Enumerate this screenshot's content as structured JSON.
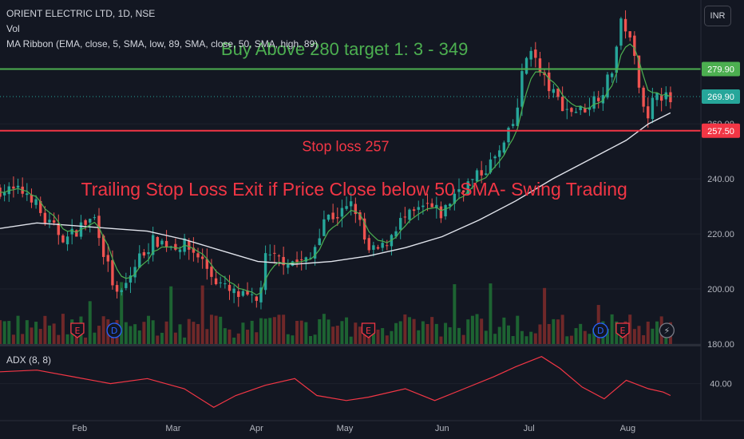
{
  "header": {
    "symbol_line": "ORIENT ELECTRIC LTD, 1D, NSE",
    "volume_label": "Vol",
    "ma_ribbon_label": "MA Ribbon (EMA, close, 5, SMA, low, 89, SMA, close, 50, SMA, high, 89)",
    "currency_button": "INR"
  },
  "adx_label": "ADX (8, 8)",
  "colors": {
    "background": "#131722",
    "up": "#26a69a",
    "down": "#ef5350",
    "buy_line": "#4caf50",
    "stop_line": "#f23645",
    "sma_line": "#e0e3eb",
    "ema_line": "#4caf50",
    "adx_line": "#f23645",
    "volume_up": "#1f6b34",
    "volume_down": "#7a2a2a"
  },
  "chart_data": [
    {
      "type": "candlestick",
      "title": "ORIENT ELECTRIC LTD, 1D, NSE",
      "x_tick_labels": [
        "Feb",
        "Mar",
        "Apr",
        "May",
        "Jun",
        "Jul",
        "Aug"
      ],
      "y_tick_labels": [
        "180.00",
        "200.00",
        "220.00",
        "240.00",
        "260.00"
      ],
      "ylim": [
        180,
        305
      ],
      "price_labels": [
        {
          "value": 279.9,
          "text": "279.90",
          "color": "#4caf50"
        },
        {
          "value": 269.9,
          "text": "269.90",
          "color": "#26a69a"
        },
        {
          "value": 257.5,
          "text": "257.50",
          "color": "#f23645"
        }
      ],
      "horizontal_lines": [
        {
          "value": 279.9,
          "color": "#4caf50"
        },
        {
          "value": 257.5,
          "color": "#f23645"
        }
      ],
      "annotations": [
        {
          "text": "Buy Above 280 target 1: 3 - 349",
          "color": "#4caf50",
          "at": [
            0.3,
            285
          ]
        },
        {
          "text": "Stop loss 257",
          "color": "#f23645",
          "at": [
            0.41,
            250
          ]
        },
        {
          "text": "Trailing Stop Loss Exit if Price Close below 50 SMA- Swing Trading",
          "color": "#f23645",
          "at": [
            0.11,
            234
          ]
        }
      ],
      "event_markers": [
        {
          "label": "E",
          "kind": "earnings",
          "t": 0.105
        },
        {
          "label": "D",
          "kind": "dividend",
          "t": 0.155
        },
        {
          "label": "E",
          "kind": "earnings",
          "t": 0.5
        },
        {
          "label": "D",
          "kind": "dividend",
          "t": 0.815
        },
        {
          "label": "E",
          "kind": "earnings",
          "t": 0.845
        },
        {
          "label": "⚡",
          "kind": "flash",
          "t": 0.905
        }
      ],
      "close_path": [
        [
          0.0,
          236
        ],
        [
          0.04,
          235
        ],
        [
          0.06,
          225
        ],
        [
          0.09,
          218
        ],
        [
          0.11,
          223
        ],
        [
          0.13,
          226
        ],
        [
          0.14,
          214
        ],
        [
          0.16,
          196
        ],
        [
          0.17,
          201
        ],
        [
          0.19,
          212
        ],
        [
          0.21,
          218
        ],
        [
          0.23,
          216
        ],
        [
          0.25,
          216
        ],
        [
          0.27,
          212
        ],
        [
          0.29,
          204
        ],
        [
          0.31,
          199
        ],
        [
          0.33,
          197
        ],
        [
          0.35,
          195
        ],
        [
          0.36,
          211
        ],
        [
          0.38,
          211
        ],
        [
          0.4,
          210
        ],
        [
          0.42,
          210
        ],
        [
          0.44,
          226
        ],
        [
          0.46,
          227
        ],
        [
          0.48,
          231
        ],
        [
          0.5,
          213
        ],
        [
          0.52,
          215
        ],
        [
          0.54,
          224
        ],
        [
          0.56,
          227
        ],
        [
          0.58,
          230
        ],
        [
          0.6,
          227
        ],
        [
          0.62,
          236
        ],
        [
          0.64,
          239
        ],
        [
          0.66,
          244
        ],
        [
          0.68,
          250
        ],
        [
          0.7,
          262
        ],
        [
          0.71,
          280
        ],
        [
          0.72,
          289
        ],
        [
          0.73,
          280
        ],
        [
          0.75,
          271
        ],
        [
          0.77,
          265
        ],
        [
          0.79,
          265
        ],
        [
          0.81,
          270
        ],
        [
          0.82,
          273
        ],
        [
          0.83,
          279
        ],
        [
          0.845,
          299
        ],
        [
          0.86,
          285
        ],
        [
          0.87,
          272
        ],
        [
          0.88,
          260
        ],
        [
          0.89,
          274
        ],
        [
          0.9,
          270
        ],
        [
          0.91,
          268
        ]
      ],
      "sma_path": [
        [
          0.0,
          222
        ],
        [
          0.05,
          224
        ],
        [
          0.1,
          223
        ],
        [
          0.15,
          222
        ],
        [
          0.2,
          221
        ],
        [
          0.25,
          218
        ],
        [
          0.3,
          214
        ],
        [
          0.35,
          210
        ],
        [
          0.4,
          209
        ],
        [
          0.45,
          210
        ],
        [
          0.5,
          212
        ],
        [
          0.55,
          215
        ],
        [
          0.6,
          219
        ],
        [
          0.65,
          225
        ],
        [
          0.7,
          232
        ],
        [
          0.75,
          240
        ],
        [
          0.8,
          247
        ],
        [
          0.85,
          254
        ],
        [
          0.88,
          260
        ],
        [
          0.91,
          264
        ]
      ]
    },
    {
      "type": "line",
      "title": "ADX (8, 8)",
      "y_tick_labels": [
        "40.00"
      ],
      "ylim": [
        20,
        62
      ],
      "values": [
        [
          0.0,
          47
        ],
        [
          0.05,
          48
        ],
        [
          0.1,
          44
        ],
        [
          0.15,
          40
        ],
        [
          0.2,
          43
        ],
        [
          0.25,
          37
        ],
        [
          0.29,
          26
        ],
        [
          0.32,
          33
        ],
        [
          0.36,
          39
        ],
        [
          0.4,
          43
        ],
        [
          0.43,
          33
        ],
        [
          0.47,
          30
        ],
        [
          0.5,
          32
        ],
        [
          0.55,
          37
        ],
        [
          0.59,
          30
        ],
        [
          0.63,
          37
        ],
        [
          0.67,
          44
        ],
        [
          0.7,
          50
        ],
        [
          0.735,
          56
        ],
        [
          0.76,
          49
        ],
        [
          0.79,
          38
        ],
        [
          0.82,
          31
        ],
        [
          0.85,
          42
        ],
        [
          0.88,
          37
        ],
        [
          0.9,
          35
        ],
        [
          0.91,
          33
        ]
      ]
    }
  ]
}
